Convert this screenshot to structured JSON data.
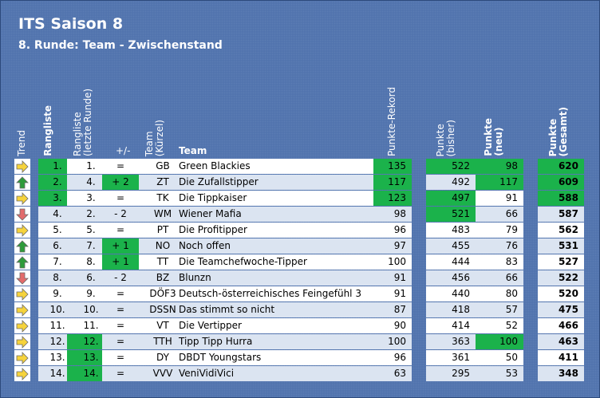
{
  "title": "ITS Saison 8",
  "subtitle": "8. Runde: Team - Zwischenstand",
  "headers": {
    "trend": "Trend",
    "rank": "Rangliste",
    "last_rank_1": "Rangliste",
    "last_rank_2": "(letzte Runde)",
    "change": "+/-",
    "abbr_1": "Team",
    "abbr_2": "(Kürzel)",
    "team": "Team",
    "record": "Punkte-Rekord",
    "prev_1": "Punkte",
    "prev_2": "(bisher)",
    "new_1": "Punkte",
    "new_2": "(neu)",
    "total_1": "Punkte",
    "total_2": "(Gesamt)"
  },
  "colors": {
    "background": "#4f72ad",
    "highlight": "#1bb24b",
    "row_alt": "#dbe4f1",
    "arrow_same": "#f6d33b",
    "arrow_up": "#2e9b3a",
    "arrow_down": "#e36b6b"
  },
  "rows": [
    {
      "trend": "same",
      "rank": "1.",
      "rank_hl": true,
      "last": "1.",
      "last_hl": false,
      "change": "=",
      "change_hl": false,
      "abbr": "GB",
      "team": "Green Blackies",
      "record": "135",
      "record_hl": true,
      "prev": "522",
      "prev_hl": true,
      "new": "98",
      "new_hl": true,
      "total": "620",
      "total_hl": true
    },
    {
      "trend": "up",
      "rank": "2.",
      "rank_hl": true,
      "last": "4.",
      "last_hl": false,
      "change": "+ 2",
      "change_hl": true,
      "abbr": "ZT",
      "team": "Die Zufallstipper",
      "record": "117",
      "record_hl": true,
      "prev": "492",
      "prev_hl": false,
      "new": "117",
      "new_hl": true,
      "total": "609",
      "total_hl": true
    },
    {
      "trend": "same",
      "rank": "3.",
      "rank_hl": true,
      "last": "3.",
      "last_hl": false,
      "change": "=",
      "change_hl": false,
      "abbr": "TK",
      "team": "Die Tippkaiser",
      "record": "123",
      "record_hl": true,
      "prev": "497",
      "prev_hl": true,
      "new": "91",
      "new_hl": false,
      "total": "588",
      "total_hl": true
    },
    {
      "trend": "down",
      "rank": "4.",
      "rank_hl": false,
      "last": "2.",
      "last_hl": false,
      "change": "- 2",
      "change_hl": false,
      "abbr": "WM",
      "team": "Wiener Mafia",
      "record": "98",
      "record_hl": false,
      "prev": "521",
      "prev_hl": true,
      "new": "66",
      "new_hl": false,
      "total": "587",
      "total_hl": false
    },
    {
      "trend": "same",
      "rank": "5.",
      "rank_hl": false,
      "last": "5.",
      "last_hl": false,
      "change": "=",
      "change_hl": false,
      "abbr": "PT",
      "team": "Die Profitipper",
      "record": "96",
      "record_hl": false,
      "prev": "483",
      "prev_hl": false,
      "new": "79",
      "new_hl": false,
      "total": "562",
      "total_hl": false
    },
    {
      "trend": "up",
      "rank": "6.",
      "rank_hl": false,
      "last": "7.",
      "last_hl": false,
      "change": "+ 1",
      "change_hl": true,
      "abbr": "NO",
      "team": "Noch offen",
      "record": "97",
      "record_hl": false,
      "prev": "455",
      "prev_hl": false,
      "new": "76",
      "new_hl": false,
      "total": "531",
      "total_hl": false
    },
    {
      "trend": "up",
      "rank": "7.",
      "rank_hl": false,
      "last": "8.",
      "last_hl": false,
      "change": "+ 1",
      "change_hl": true,
      "abbr": "TT",
      "team": "Die Teamchefwoche-Tipper",
      "record": "100",
      "record_hl": false,
      "prev": "444",
      "prev_hl": false,
      "new": "83",
      "new_hl": false,
      "total": "527",
      "total_hl": false
    },
    {
      "trend": "down",
      "rank": "8.",
      "rank_hl": false,
      "last": "6.",
      "last_hl": false,
      "change": "- 2",
      "change_hl": false,
      "abbr": "BZ",
      "team": "Blunzn",
      "record": "91",
      "record_hl": false,
      "prev": "456",
      "prev_hl": false,
      "new": "66",
      "new_hl": false,
      "total": "522",
      "total_hl": false
    },
    {
      "trend": "same",
      "rank": "9.",
      "rank_hl": false,
      "last": "9.",
      "last_hl": false,
      "change": "=",
      "change_hl": false,
      "abbr": "DÖF3",
      "team": "Deutsch-österreichisches Feingefühl 3",
      "record": "91",
      "record_hl": false,
      "prev": "440",
      "prev_hl": false,
      "new": "80",
      "new_hl": false,
      "total": "520",
      "total_hl": false
    },
    {
      "trend": "same",
      "rank": "10.",
      "rank_hl": false,
      "last": "10.",
      "last_hl": false,
      "change": "=",
      "change_hl": false,
      "abbr": "DSSN",
      "team": "Das stimmt so nicht",
      "record": "87",
      "record_hl": false,
      "prev": "418",
      "prev_hl": false,
      "new": "57",
      "new_hl": false,
      "total": "475",
      "total_hl": false
    },
    {
      "trend": "same",
      "rank": "11.",
      "rank_hl": false,
      "last": "11.",
      "last_hl": false,
      "change": "=",
      "change_hl": false,
      "abbr": "VT",
      "team": "Die Vertipper",
      "record": "90",
      "record_hl": false,
      "prev": "414",
      "prev_hl": false,
      "new": "52",
      "new_hl": false,
      "total": "466",
      "total_hl": false
    },
    {
      "trend": "same",
      "rank": "12.",
      "rank_hl": false,
      "last": "12.",
      "last_hl": true,
      "change": "=",
      "change_hl": false,
      "abbr": "TTH",
      "team": "Tipp Tipp Hurra",
      "record": "100",
      "record_hl": false,
      "prev": "363",
      "prev_hl": false,
      "new": "100",
      "new_hl": true,
      "total": "463",
      "total_hl": false
    },
    {
      "trend": "same",
      "rank": "13.",
      "rank_hl": false,
      "last": "13.",
      "last_hl": true,
      "change": "=",
      "change_hl": false,
      "abbr": "DY",
      "team": "DBDT Youngstars",
      "record": "96",
      "record_hl": false,
      "prev": "361",
      "prev_hl": false,
      "new": "50",
      "new_hl": false,
      "total": "411",
      "total_hl": false
    },
    {
      "trend": "same",
      "rank": "14.",
      "rank_hl": false,
      "last": "14.",
      "last_hl": true,
      "change": "=",
      "change_hl": false,
      "abbr": "VVV",
      "team": "VeniVidiVici",
      "record": "63",
      "record_hl": false,
      "prev": "295",
      "prev_hl": false,
      "new": "53",
      "new_hl": false,
      "total": "348",
      "total_hl": false
    }
  ]
}
